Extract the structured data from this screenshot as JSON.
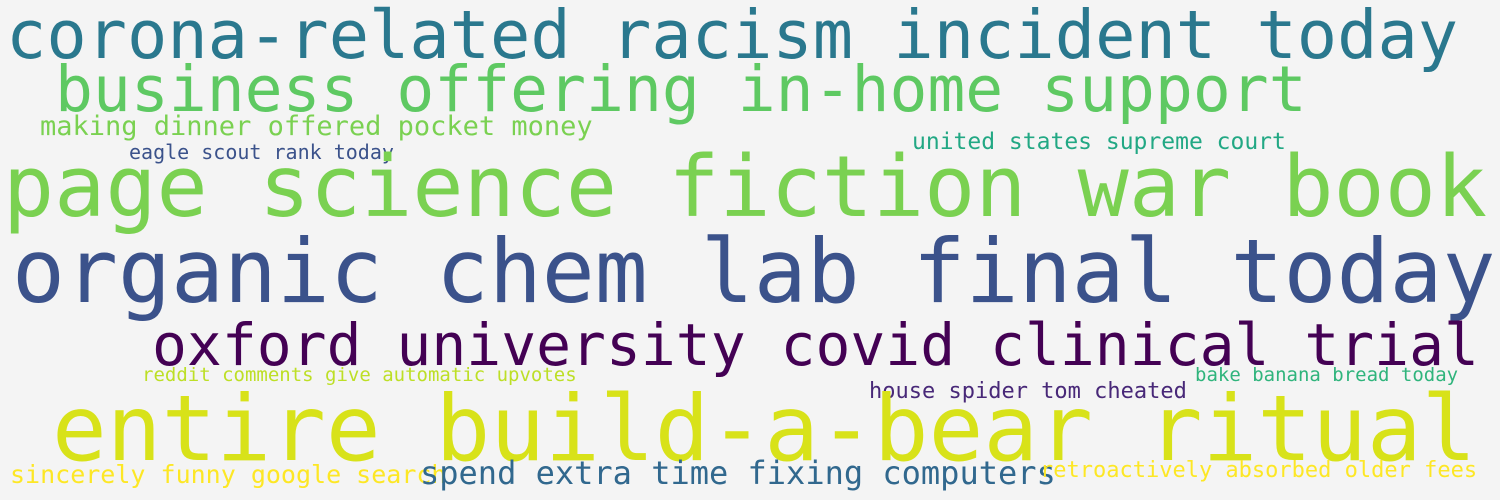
{
  "cloud": {
    "phrases": [
      {
        "text": "corona-related racism incident today",
        "color": "#2a788e"
      },
      {
        "text": "business offering in-home support",
        "color": "#5ec962"
      },
      {
        "text": "making dinner offered pocket money",
        "color": "#7ad151"
      },
      {
        "text": "eagle scout rank today",
        "color": "#3b528b"
      },
      {
        "text": "united states supreme court",
        "color": "#22a884"
      },
      {
        "text": "page science fiction war book",
        "color": "#7ad151"
      },
      {
        "text": "organic chem lab final today",
        "color": "#3b528b"
      },
      {
        "text": "oxford university covid clinical trial",
        "color": "#440154"
      },
      {
        "text": "reddit comments give automatic upvotes",
        "color": "#bddf26"
      },
      {
        "text": "house spider tom cheated",
        "color": "#482878"
      },
      {
        "text": "bake banana bread today",
        "color": "#2fb47c"
      },
      {
        "text": "entire build-a-bear ritual",
        "color": "#d8e219"
      },
      {
        "text": "sincerely funny google search",
        "color": "#fde725"
      },
      {
        "text": "spend extra time fixing computers",
        "color": "#31688e"
      },
      {
        "text": "retroactively absorbed older fees",
        "color": "#fde725"
      }
    ]
  }
}
